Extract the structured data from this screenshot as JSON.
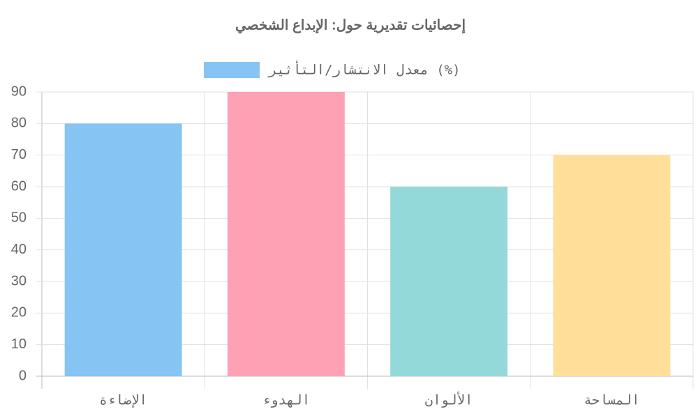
{
  "chart_data": {
    "type": "bar",
    "title": "إحصائيات تقديرية حول: الإبداع الشخصي",
    "categories": [
      "الإضاءة",
      "الهدوء",
      "الألوان",
      "المساحة"
    ],
    "series": [
      {
        "name": "معدل الانتشار/التأثير (%)",
        "color": "#86c4f3",
        "bar_colors": [
          "#86c4f3",
          "#ffa1b5",
          "#94d9d9",
          "#ffdf9a"
        ],
        "values": [
          80,
          90,
          60,
          70
        ]
      }
    ],
    "ylim": [
      0,
      90
    ],
    "yticks": [
      0,
      10,
      20,
      30,
      40,
      50,
      60,
      70,
      80,
      90
    ],
    "grid": true,
    "legend": "top"
  }
}
